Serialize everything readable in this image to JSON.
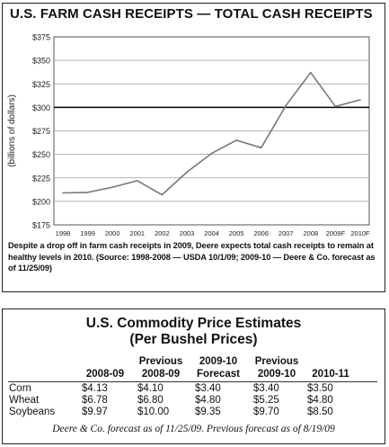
{
  "chart_data": {
    "type": "line",
    "title": "U.S. FARM CASH RECEIPTS — TOTAL CASH RECEIPTS",
    "ylabel": "(billions of dollars)",
    "xlabel": "",
    "categories": [
      "1998",
      "1999",
      "2000",
      "2001",
      "2002",
      "2003",
      "2004",
      "2005",
      "2006",
      "2007",
      "2008",
      "2009F",
      "2010F"
    ],
    "series": [
      {
        "values": [
          209,
          209.5,
          215,
          222,
          207,
          231,
          251,
          265,
          257,
          302,
          337,
          301,
          308
        ]
      }
    ],
    "yticks": [
      "$175",
      "$200",
      "$225",
      "$250",
      "$275",
      "$300",
      "$325",
      "$350",
      "$375"
    ],
    "ytick_values": [
      175,
      200,
      225,
      250,
      275,
      300,
      325,
      350,
      375
    ],
    "ylim": [
      175,
      375
    ],
    "reference_line": 300,
    "grid": "horizontal",
    "line_color": "#777777",
    "reference_color": "#000000",
    "caption": "Despite a drop off in farm cash receipts in 2009, Deere expects total cash receipts to remain at healthy levels in 2010. (Source: 1998-2008 — USDA 10/1/09; 2009-10 — Deere & Co. forecast as of 11/25/09)"
  },
  "table": {
    "title_line1": "U.S. Commodity Price Estimates",
    "title_line2": "(Per Bushel Prices)",
    "columns": [
      {
        "line1": "",
        "line2": "2008-09"
      },
      {
        "line1": "Previous",
        "line2": "2008-09"
      },
      {
        "line1": "2009-10",
        "line2": "Forecast"
      },
      {
        "line1": "Previous",
        "line2": "2009-10"
      },
      {
        "line1": "",
        "line2": "2010-11"
      }
    ],
    "rows": [
      {
        "label": "Corn",
        "values": [
          "$4.13",
          "$4.10",
          "$3.40",
          "$3.40",
          "$3.50"
        ]
      },
      {
        "label": "Wheat",
        "values": [
          "$6.78",
          "$6.80",
          "$4.80",
          "$5.25",
          "$4.80"
        ]
      },
      {
        "label": "Soybeans",
        "values": [
          "$9.97",
          "$10.00",
          "$9.35",
          "$9.70",
          "$8.50"
        ]
      }
    ],
    "footnote": "Deere & Co. forecast as of 11/25/09. Previous forecast as of 8/19/09"
  }
}
